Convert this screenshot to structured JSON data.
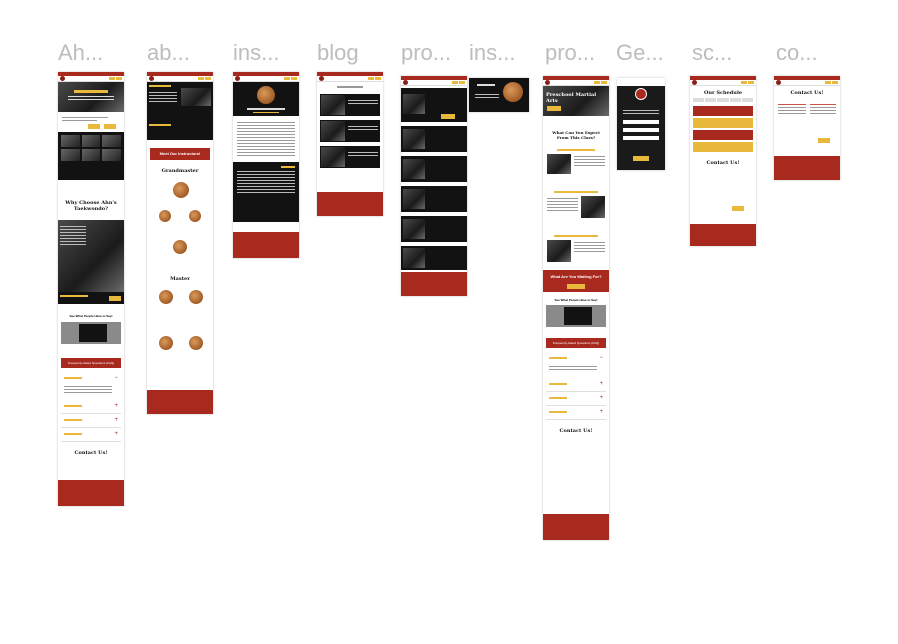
{
  "canvas": {
    "background": "#ffffff"
  },
  "frames": [
    {
      "id": "ahn",
      "label": "Ah..."
    },
    {
      "id": "about",
      "label": "ab..."
    },
    {
      "id": "instructor",
      "label": "ins..."
    },
    {
      "id": "blog",
      "label": "blog"
    },
    {
      "id": "programs",
      "label": "pro..."
    },
    {
      "id": "instructors",
      "label": "ins..."
    },
    {
      "id": "preschool",
      "label": "pro..."
    },
    {
      "id": "get",
      "label": "Ge..."
    },
    {
      "id": "schedule",
      "label": "sc..."
    },
    {
      "id": "contact",
      "label": "co..."
    }
  ],
  "texts": {
    "meet_instructors": "Meet Our Instructors!",
    "grandmaster": "Grandmaster",
    "master": "Master",
    "why_choose": "Why Choose Ahn's Taekwondo?",
    "faq": "Frequently Asked Questions (FAQ)",
    "contact_us": "Contact Us!",
    "our_schedule": "Our Schedule",
    "preschool_ma": "Preschool Martial Arts",
    "what_expect": "What Can You Expect From This Class?",
    "what_waiting": "What Are You Waiting For?",
    "what_people": "See What People Have to Say!",
    "question_1": "Question 1",
    "question_2": "Question 2",
    "question_3": "Question 3",
    "question_4": "Question 4",
    "plus": "+",
    "minus": "−"
  },
  "colors": {
    "brand_red": "#a8291e",
    "accent_gold": "#e8b93a",
    "dark": "#121212"
  }
}
